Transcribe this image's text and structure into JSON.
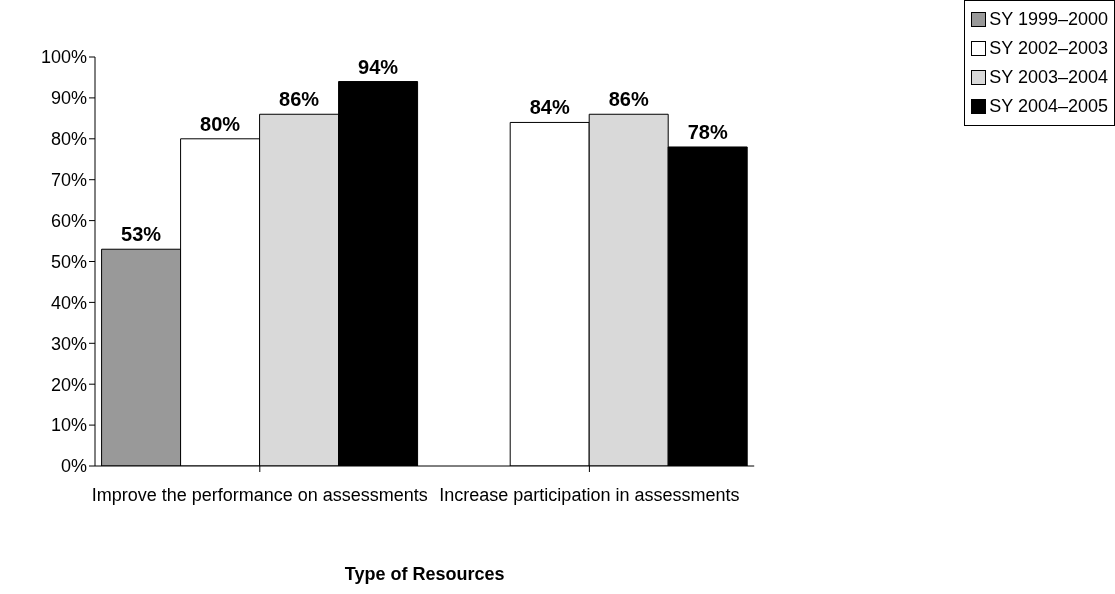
{
  "chart_data": {
    "type": "bar",
    "xlabel": "Type of Resources",
    "categories": [
      "Improve the performance on assessments",
      "Increase participation in assessments"
    ],
    "series": [
      {
        "name": "SY 1999–2000",
        "color": "#999999",
        "values": [
          53,
          null
        ],
        "value_labels": [
          "53%",
          null
        ]
      },
      {
        "name": "SY 2002–2003",
        "color": "#ffffff",
        "values": [
          80,
          84
        ],
        "value_labels": [
          "80%",
          "84%"
        ]
      },
      {
        "name": "SY 2003–2004",
        "color": "#d9d9d9",
        "values": [
          86,
          86
        ],
        "value_labels": [
          "86%",
          "86%"
        ]
      },
      {
        "name": "SY 2004–2005",
        "color": "#000000",
        "values": [
          94,
          78
        ],
        "value_labels": [
          "94%",
          "78%"
        ]
      }
    ],
    "ylim": [
      0,
      100
    ],
    "yticks": [
      {
        "value": 0,
        "label": "0%"
      },
      {
        "value": 10,
        "label": "10%"
      },
      {
        "value": 20,
        "label": "20%"
      },
      {
        "value": 30,
        "label": "30%"
      },
      {
        "value": 40,
        "label": "40%"
      },
      {
        "value": 50,
        "label": "50%"
      },
      {
        "value": 60,
        "label": "60%"
      },
      {
        "value": 70,
        "label": "70%"
      },
      {
        "value": 80,
        "label": "80%"
      },
      {
        "value": 90,
        "label": "90%"
      },
      {
        "value": 100,
        "label": "100%"
      }
    ],
    "grid": false,
    "legend": "top right"
  }
}
